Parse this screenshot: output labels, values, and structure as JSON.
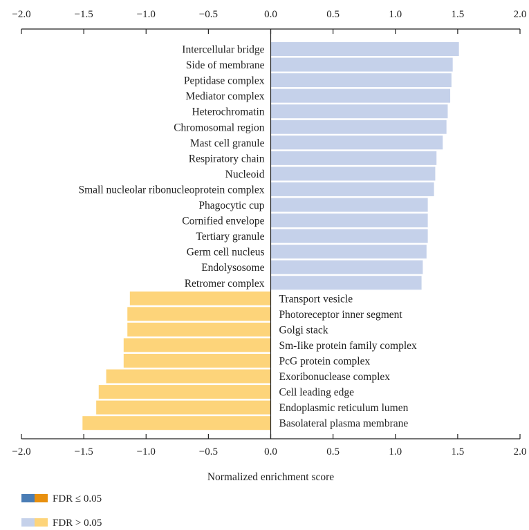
{
  "chart_data": {
    "type": "bar",
    "orientation": "horizontal",
    "xlabel": "Normalized enrichment score",
    "xlim": [
      -2.0,
      2.0
    ],
    "x_ticks": [
      -2.0,
      -1.5,
      -1.0,
      -0.5,
      0.0,
      0.5,
      1.0,
      1.5,
      2.0
    ],
    "x_tick_labels": [
      "−2.0",
      "−1.5",
      "−1.0",
      "−0.5",
      "0.0",
      "0.5",
      "1.0",
      "1.5",
      "2.0"
    ],
    "grid": false,
    "legend_position": "bottom-left",
    "categories": [
      "Intercellular bridge",
      "Side of membrane",
      "Peptidase complex",
      "Mediator complex",
      "Heterochromatin",
      "Chromosomal region",
      "Mast cell granule",
      "Respiratory chain",
      "Nucleoid",
      "Small nucleolar ribonucleoprotein complex",
      "Phagocytic cup",
      "Cornified envelope",
      "Tertiary granule",
      "Germ cell nucleus",
      "Endolysosome",
      "Retromer complex",
      "Transport vesicle",
      "Photoreceptor inner segment",
      "Golgi stack",
      "Sm-Iike protein family complex",
      "PcG protein complex",
      "Exoribonuclease complex",
      "Cell leading edge",
      "Endoplasmic reticulum lumen",
      "Basolateral plasma membrane"
    ],
    "values": [
      1.51,
      1.46,
      1.45,
      1.44,
      1.42,
      1.41,
      1.38,
      1.33,
      1.32,
      1.31,
      1.26,
      1.26,
      1.26,
      1.25,
      1.22,
      1.21,
      -1.13,
      -1.15,
      -1.15,
      -1.18,
      -1.18,
      -1.32,
      -1.38,
      -1.4,
      -1.51
    ],
    "colors": {
      "positive_sig": "#4a7db5",
      "negative_sig": "#e8900f",
      "positive_nonsig": "#c5d1ea",
      "negative_nonsig": "#fdd47a",
      "axis": "#222222"
    },
    "legend": [
      {
        "label": "FDR ≤ 0.05",
        "swatches": [
          "positive_sig",
          "negative_sig"
        ]
      },
      {
        "label": "FDR > 0.05",
        "swatches": [
          "positive_nonsig",
          "negative_nonsig"
        ]
      }
    ]
  }
}
